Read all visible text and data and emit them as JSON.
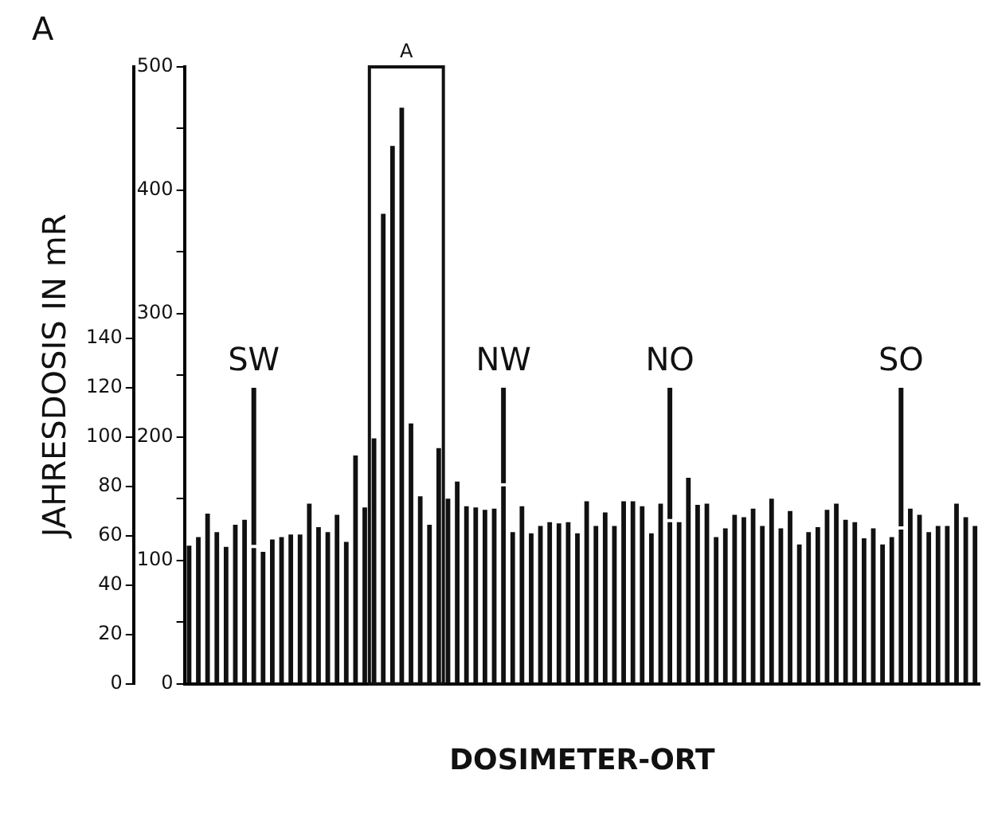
{
  "chart_data": {
    "type": "bar",
    "title": "A",
    "xlabel": "DOSIMETER-ORT",
    "ylabel": "JAHRESDOSIS IN mR",
    "categories": [
      null,
      null,
      null,
      null,
      null,
      null,
      null,
      null,
      null,
      null,
      null,
      null,
      null,
      null,
      null,
      null,
      null,
      null,
      null,
      null,
      null,
      null,
      null,
      null,
      null,
      null,
      null,
      null,
      null,
      null,
      null,
      null,
      null,
      null,
      null,
      null,
      null,
      null,
      null,
      null,
      null,
      null,
      null,
      null,
      null,
      null,
      null,
      null,
      null,
      null,
      null,
      null,
      null,
      null,
      null,
      null,
      null,
      null,
      null,
      null,
      null,
      null,
      null,
      null,
      null,
      null,
      null,
      null,
      null,
      null,
      null,
      null,
      null,
      null,
      null,
      null,
      null,
      null,
      null,
      null,
      null,
      null,
      null,
      null,
      null,
      null
    ],
    "series": [
      {
        "color": "#111111",
        "axis": "y2",
        "values": [
          112,
          119,
          138,
          123,
          111,
          129,
          133,
          110,
          107,
          117,
          119,
          121,
          121,
          146,
          127,
          123,
          137,
          115,
          185,
          143,
          199,
          381,
          436,
          467,
          211,
          152,
          129,
          191,
          150,
          164,
          144,
          143,
          141,
          142,
          160,
          123,
          144,
          122,
          128,
          131,
          130,
          131,
          122,
          148,
          128,
          139,
          128,
          148,
          148,
          144,
          122,
          146,
          131,
          131,
          167,
          145,
          146,
          119,
          126,
          137,
          135,
          142,
          128,
          150,
          126,
          140,
          113,
          123,
          127,
          141,
          146,
          133,
          131,
          118,
          126,
          113,
          119,
          125,
          142,
          137,
          123,
          128,
          128,
          146,
          135,
          128
        ]
      }
    ],
    "ylim": [
      0,
      250
    ],
    "yticks": [
      0,
      20,
      40,
      60,
      80,
      100,
      120,
      140
    ],
    "y2lim": [
      0,
      500
    ],
    "y2ticks": [
      0,
      {
        "value": 50,
        "label": null
      },
      100,
      {
        "value": 150,
        "label": null
      },
      200,
      {
        "value": 250,
        "label": null
      },
      300,
      {
        "value": 350,
        "label": null
      },
      400,
      {
        "value": 450,
        "label": null
      },
      500
    ],
    "annotations": [
      "SW",
      "NW",
      "NO",
      "SO",
      "A"
    ],
    "tick_labels": "y",
    "grid": false,
    "legend": false
  }
}
